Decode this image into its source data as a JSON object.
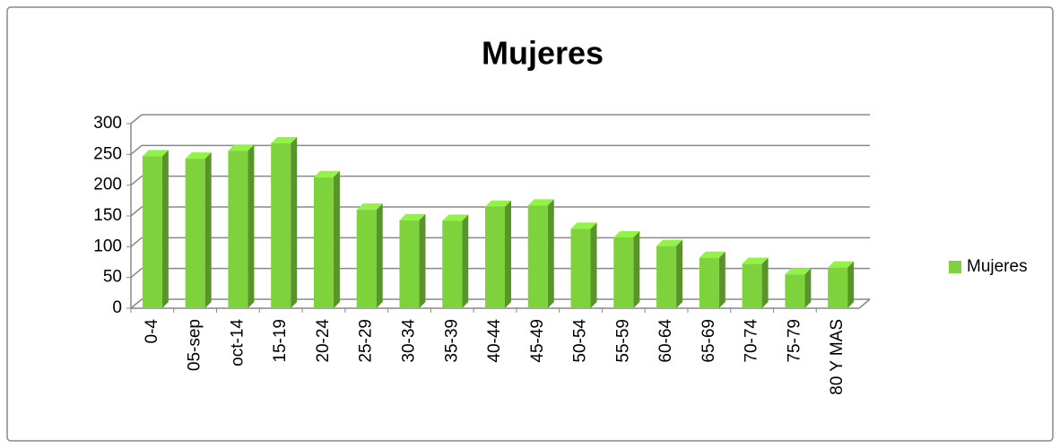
{
  "chart_data": {
    "type": "bar3d",
    "title": "Mujeres",
    "categories": [
      "0-4",
      "05-sep",
      "oct-14",
      "15-19",
      "20-24",
      "25-29",
      "30-34",
      "35-39",
      "40-44",
      "45-49",
      "50-54",
      "55-59",
      "60-64",
      "65-69",
      "70-74",
      "75-79",
      "80 Y MAS"
    ],
    "series": [
      {
        "name": "Mujeres",
        "color": "#7ed33c",
        "values": [
          247,
          243,
          256,
          268,
          213,
          160,
          143,
          142,
          165,
          167,
          129,
          115,
          101,
          82,
          72,
          55,
          66
        ]
      }
    ],
    "ylim": [
      0,
      300
    ],
    "yticks": [
      0,
      50,
      100,
      150,
      200,
      250,
      300
    ],
    "grid": true,
    "legend": "right"
  }
}
